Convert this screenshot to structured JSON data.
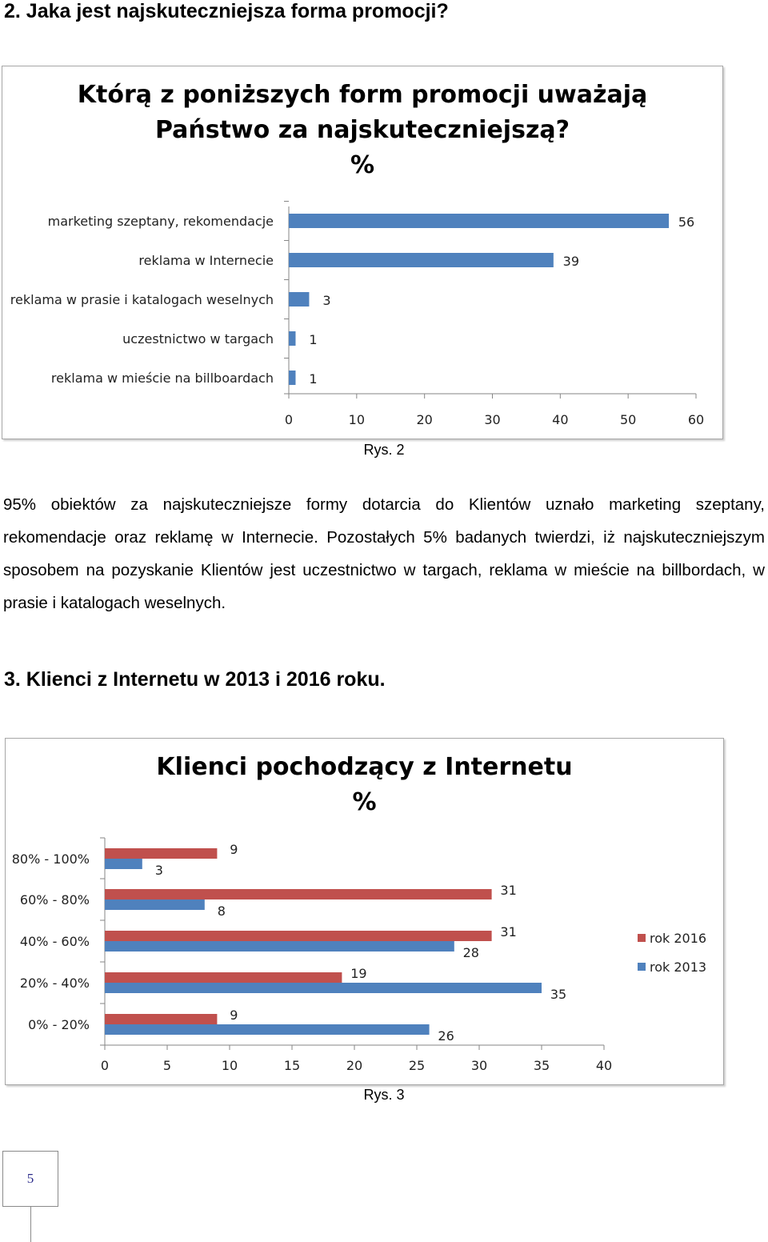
{
  "section2": {
    "heading": "2. Jaka jest najskuteczniejsza forma promocji?"
  },
  "chart1": {
    "title_line1": "Którą z poniższych form promocji uważają",
    "title_line2": "Państwo za najskuteczniejszą?",
    "title_line3": "%",
    "caption": "Rys. 2",
    "bar_color": "#4f81bd"
  },
  "paragraph": "95% obiektów za najskuteczniejsze formy dotarcia do Klientów uznało marketing szeptany, rekomendacje oraz reklamę w Internecie. Pozostałych 5% badanych twierdzi, iż najskuteczniejszym sposobem na pozyskanie Klientów jest uczestnictwo w targach, reklama w mieście na billbordach, w prasie i katalogach weselnych.",
  "section3": {
    "heading": "3. Klienci z Internetu w 2013 i 2016 roku."
  },
  "chart2": {
    "title_line1": "Klienci pochodzący z Internetu",
    "title_line2": "%",
    "caption": "Rys. 3",
    "color_2016": "#c0504d",
    "color_2013": "#4f81bd"
  },
  "page_number": "5",
  "chart_data": [
    {
      "type": "bar",
      "orientation": "horizontal",
      "title": "Którą z poniższych form promocji uważają Państwo za najskuteczniejszą? %",
      "categories": [
        "marketing szeptany, rekomendacje",
        "reklama w Internecie",
        "reklama w prasie i katalogach weselnych",
        "uczestnictwo w targach",
        "reklama w mieście na billboardach"
      ],
      "values": [
        56,
        39,
        3,
        1,
        1
      ],
      "data_labels": [
        "56",
        "39",
        "3",
        "1",
        "1"
      ],
      "xlim": [
        0,
        60
      ],
      "xticks": [
        "0",
        "10",
        "20",
        "30",
        "40",
        "50",
        "60"
      ],
      "grid": false
    },
    {
      "type": "bar",
      "orientation": "horizontal",
      "title": "Klienci pochodzący z Internetu %",
      "categories": [
        "80% - 100%",
        "60% - 80%",
        "40% - 60%",
        "20% - 40%",
        "0% - 20%"
      ],
      "series": [
        {
          "name": "rok 2016",
          "values": [
            9,
            31,
            31,
            19,
            9
          ],
          "labels": [
            "9",
            "31",
            "31",
            "19",
            "9"
          ]
        },
        {
          "name": "rok 2013",
          "values": [
            3,
            8,
            28,
            35,
            26
          ],
          "labels": [
            "3",
            "8",
            "28",
            "35",
            "26"
          ]
        }
      ],
      "xlim": [
        0,
        40
      ],
      "xticks": [
        "0",
        "5",
        "10",
        "15",
        "20",
        "25",
        "30",
        "35",
        "40"
      ],
      "legend": "right",
      "grid": false
    }
  ]
}
